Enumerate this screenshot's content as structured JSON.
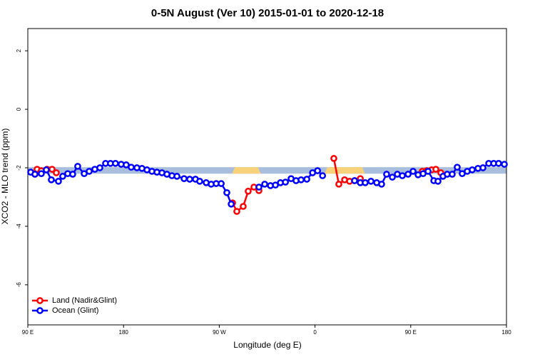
{
  "chart_data": {
    "type": "line",
    "title": "0-5N August (Ver 10)   2015-01-01 to 2020-12-18",
    "x_label": "Longitude (deg E)",
    "y_label": "XCO2 - MLO trend (ppm)",
    "xlim": [
      90,
      540
    ],
    "ylim": [
      -7.37,
      2.76
    ],
    "xticks": [
      {
        "value": 90,
        "label": "90 E"
      },
      180,
      {
        "value": 270,
        "label": "90 W"
      },
      {
        "value": 360,
        "label": "0"
      },
      {
        "value": 450,
        "label": "90 E"
      },
      {
        "value": 540,
        "label": "180"
      }
    ],
    "yticks": [
      -6,
      -4,
      -2,
      0,
      2
    ],
    "legend": "bottom-left",
    "shading": [
      {
        "color": "#a9bedc",
        "x": [
          90,
          540
        ],
        "y": [
          -2.2,
          -1.98
        ]
      },
      {
        "color": "#f8d27a",
        "x": [
          282,
          309
        ],
        "y": [
          -2.2,
          -1.98
        ]
      },
      {
        "color": "#f8d27a",
        "x": [
          369,
          407
        ],
        "y": [
          -2.2,
          -1.98
        ]
      }
    ],
    "series": [
      {
        "name": "Land (Nadir&Glint)",
        "color": "#ff0000",
        "x": [
          98.7,
          102.7,
          108.1,
          112.8,
          116.8,
          null,
          282.5,
          286.5,
          292.5,
          297.2,
          302.6,
          307.3,
          null,
          377.7,
          382.4,
          387.8,
          392.5,
          397.2,
          402.6,
          null,
          460.9,
          464.9,
          469.6,
          473.6,
          478.3
        ],
        "values": [
          -2.05,
          -2.1,
          -2.05,
          -2.05,
          -2.17,
          null,
          -3.2,
          -3.49,
          -3.32,
          -2.8,
          -2.66,
          -2.78,
          null,
          -1.68,
          -2.56,
          -2.41,
          -2.46,
          -2.44,
          -2.37,
          null,
          -2.12,
          -2.1,
          -2.07,
          -2.05,
          -2.17
        ]
      },
      {
        "name": "Ocean (Glint)",
        "color": "#0000ff",
        "x": [
          92.7,
          96.7,
          102.7,
          107.4,
          112.1,
          118.8,
          122.8,
          127.5,
          132.2,
          136.9,
          143,
          147.7,
          153,
          157.7,
          163.1,
          167.7,
          172.4,
          177.8,
          182.5,
          187.2,
          192.6,
          197.3,
          202,
          206.7,
          211.4,
          216.1,
          220.8,
          225.5,
          230.2,
          236.9,
          242.2,
          247.6,
          251.6,
          257.7,
          262.4,
          267.1,
          271.8,
          277.1,
          281.2,
          null,
          307.3,
          312.7,
          318.1,
          322.8,
          327.5,
          332.2,
          337.5,
          342.2,
          346.9,
          352.3,
          357.7,
          362.4,
          367.1,
          null,
          397.2,
          402.6,
          407.2,
          412.6,
          418,
          422.6,
          427.3,
          432.7,
          437.4,
          442.1,
          447.5,
          452.2,
          456.9,
          461.6,
          466.3,
          471.7,
          475.6,
          480.3,
          484.3,
          489,
          493.7,
          498.4,
          503.1,
          507.8,
          513.2,
          517.9,
          523.3,
          528,
          532.6,
          538
        ],
        "values": [
          -2.15,
          -2.22,
          -2.2,
          -2.07,
          -2.41,
          -2.46,
          -2.29,
          -2.2,
          -2.22,
          -1.95,
          -2.2,
          -2.12,
          -2.05,
          -2.0,
          -1.85,
          -1.85,
          -1.85,
          -1.88,
          -1.9,
          -1.98,
          -2.0,
          -2.02,
          -2.07,
          -2.12,
          -2.15,
          -2.17,
          -2.22,
          -2.27,
          -2.29,
          -2.37,
          -2.39,
          -2.39,
          -2.46,
          -2.51,
          -2.56,
          -2.54,
          -2.54,
          -2.85,
          -3.24,
          null,
          -2.66,
          -2.56,
          -2.61,
          -2.59,
          -2.51,
          -2.49,
          -2.37,
          -2.44,
          -2.41,
          -2.39,
          -2.17,
          -2.1,
          -2.27,
          null,
          -2.44,
          -2.51,
          -2.51,
          -2.46,
          -2.51,
          -2.56,
          -2.22,
          -2.32,
          -2.22,
          -2.27,
          -2.22,
          -2.12,
          -2.24,
          -2.2,
          -2.12,
          -2.44,
          -2.46,
          -2.29,
          -2.22,
          -2.22,
          -1.98,
          -2.2,
          -2.12,
          -2.07,
          -2.02,
          -2.0,
          -1.85,
          -1.85,
          -1.85,
          -1.88
        ]
      }
    ]
  }
}
